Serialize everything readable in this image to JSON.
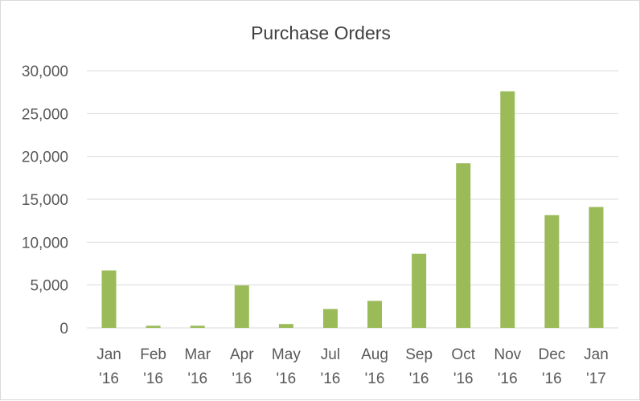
{
  "chart_data": {
    "type": "bar",
    "title": "Purchase Orders",
    "xlabel": "",
    "ylabel": "",
    "categories": [
      [
        "Jan",
        "'16"
      ],
      [
        "Feb",
        "'16"
      ],
      [
        "Mar",
        "'16"
      ],
      [
        "Apr",
        "'16"
      ],
      [
        "May",
        "'16"
      ],
      [
        "Jul",
        "'16"
      ],
      [
        "Aug",
        "'16"
      ],
      [
        "Sep",
        "'16"
      ],
      [
        "Oct",
        "'16"
      ],
      [
        "Nov",
        "'16"
      ],
      [
        "Dec",
        "'16"
      ],
      [
        "Jan",
        "'17"
      ]
    ],
    "values": [
      6700,
      250,
      250,
      4950,
      450,
      2200,
      3150,
      8650,
      19200,
      27600,
      13150,
      14100
    ],
    "ylim": [
      0,
      30000
    ],
    "yticks": [
      "0",
      "5,000",
      "10,000",
      "15,000",
      "20,000",
      "25,000",
      "30,000"
    ],
    "ytick_values": [
      0,
      5000,
      10000,
      15000,
      20000,
      25000,
      30000
    ],
    "grid": true,
    "legend": "none",
    "colors": {
      "bar": "#9bbb59",
      "grid": "#d9d9d9",
      "text": "#595959",
      "title": "#404040"
    }
  }
}
